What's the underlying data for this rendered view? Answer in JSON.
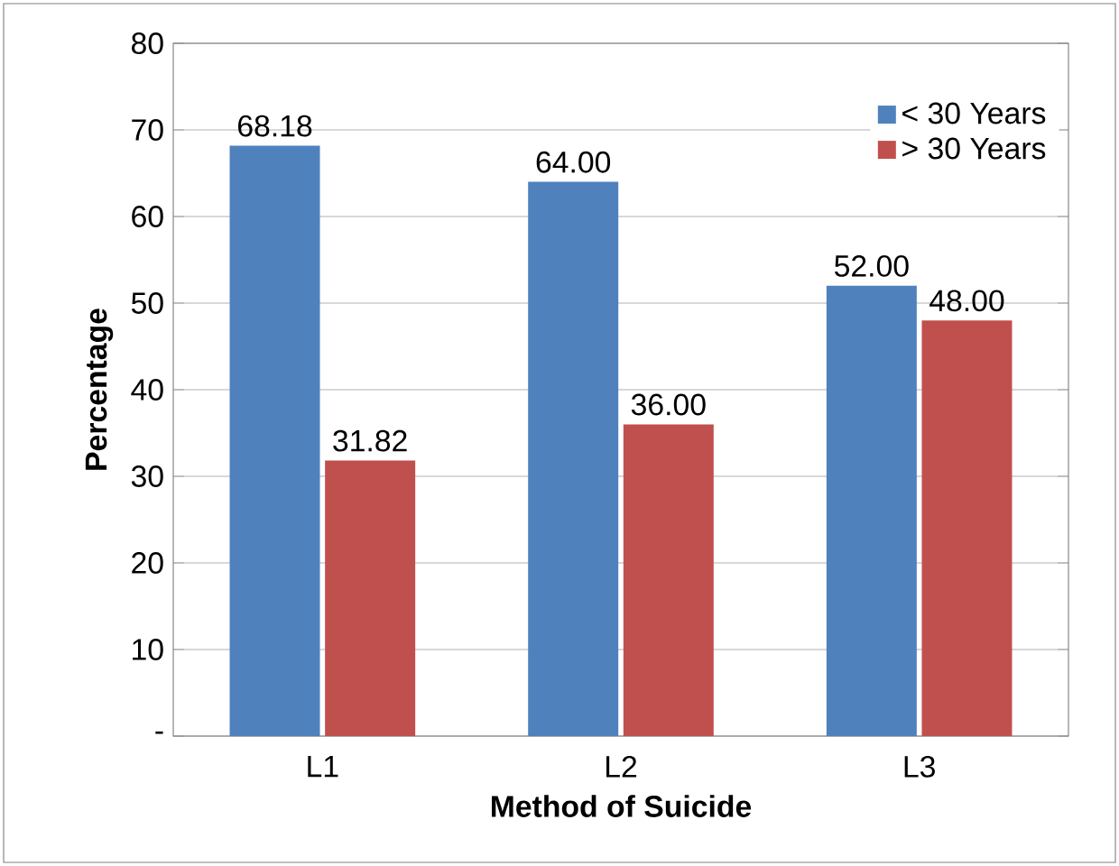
{
  "chart_data": {
    "type": "bar",
    "xlabel": "Method of Suicide",
    "ylabel": "Percentage",
    "categories": [
      "L1",
      "L2",
      "L3"
    ],
    "series": [
      {
        "name": "< 30 Years",
        "color": "#4f81bd",
        "values": [
          68.18,
          64.0,
          52.0
        ],
        "value_labels": [
          "68.18",
          "64.00",
          "52.00"
        ]
      },
      {
        "name": "> 30 Years",
        "color": "#c0504d",
        "values": [
          31.82,
          36.0,
          48.0
        ],
        "value_labels": [
          "31.82",
          "36.00",
          "48.00"
        ]
      }
    ],
    "ylim": [
      0,
      80
    ],
    "yticks": [
      {
        "value": 0,
        "label": "-"
      },
      10,
      20,
      30,
      40,
      50,
      60,
      70,
      80
    ],
    "grid": "y",
    "legend": "top right"
  }
}
